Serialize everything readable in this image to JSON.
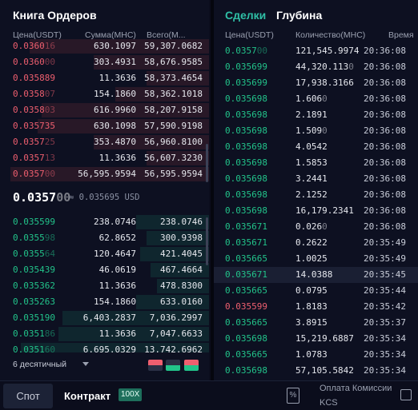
{
  "order_book": {
    "title": "Книга Ордеров",
    "columns": {
      "price": "Цена(USDT)",
      "amount": "Сумма(МНС)",
      "total": "Всего(М..."
    },
    "asks": [
      {
        "price_main": "0.0360",
        "price_dim": "16",
        "amount": "630.1097",
        "total": "59,307.0682",
        "depth": 0.86
      },
      {
        "price_main": "0.0360",
        "price_dim": "00",
        "amount": "303.4931",
        "total": "58,676.9585",
        "depth": 0.55
      },
      {
        "price_main": "0.035889",
        "price_dim": "",
        "amount": "11.3636",
        "total": "58,373.4654",
        "depth": 0.3
      },
      {
        "price_main": "0.0358",
        "price_dim": "07",
        "amount": "154.1860",
        "total": "58,362.1018",
        "depth": 0.45
      },
      {
        "price_main": "0.0358",
        "price_dim": "03",
        "amount": "616.9960",
        "total": "58,207.9158",
        "depth": 0.8
      },
      {
        "price_main": "0.035735",
        "price_dim": "",
        "amount": "630.1098",
        "total": "57,590.9198",
        "depth": 0.82
      },
      {
        "price_main": "0.0357",
        "price_dim": "25",
        "amount": "353.4870",
        "total": "56,960.8100",
        "depth": 0.55
      },
      {
        "price_main": "0.0357",
        "price_dim": "13",
        "amount": "11.3636",
        "total": "56,607.3230",
        "depth": 0.3
      },
      {
        "price_main": "0.0357",
        "price_dim": "00",
        "amount": "56,595.9594",
        "total": "56,595.9594",
        "depth": 0.95
      }
    ],
    "mid": {
      "price_main": "0.0357",
      "price_dim": "00",
      "sub": "≈ 0.035695 USD"
    },
    "bids": [
      {
        "price_main": "0.035599",
        "price_dim": "",
        "amount": "238.0746",
        "total": "238.0746",
        "depth": 0.35
      },
      {
        "price_main": "0.0355",
        "price_dim": "98",
        "amount": "62.8652",
        "total": "300.9398",
        "depth": 0.3
      },
      {
        "price_main": "0.0355",
        "price_dim": "64",
        "amount": "120.4647",
        "total": "421.4045",
        "depth": 0.33
      },
      {
        "price_main": "0.035439",
        "price_dim": "",
        "amount": "46.0619",
        "total": "467.4664",
        "depth": 0.28
      },
      {
        "price_main": "0.035362",
        "price_dim": "",
        "amount": "11.3636",
        "total": "478.8300",
        "depth": 0.25
      },
      {
        "price_main": "0.035263",
        "price_dim": "",
        "amount": "154.1860",
        "total": "633.0160",
        "depth": 0.35
      },
      {
        "price_main": "0.035190",
        "price_dim": "",
        "amount": "6,403.2837",
        "total": "7,036.2997",
        "depth": 0.7
      },
      {
        "price_main": "0.0351",
        "price_dim": "86",
        "amount": "11.3636",
        "total": "7,047.6633",
        "depth": 0.72
      },
      {
        "price_main": "0.0351",
        "price_dim": "60",
        "amount": "6,695.0329",
        "total": "13,742.6962",
        "depth": 0.9
      }
    ],
    "decimals_label": "6 десятичный",
    "colors": {
      "ask": "#ef5f6f",
      "bid": "#22c38a"
    }
  },
  "trades": {
    "tab_trades": "Сделки",
    "tab_depth": "Глубина",
    "columns": {
      "price": "Цена(USDT)",
      "qty": "Количество(МНС)",
      "time": "Время"
    },
    "rows": [
      {
        "side": "buy",
        "price_main": "0.0357",
        "price_dim": "00",
        "qty_main": "121,545.9974",
        "qty_dim": "",
        "time": "20:36:08"
      },
      {
        "side": "buy",
        "price_main": "0.035699",
        "price_dim": "",
        "qty_main": "44,320.113",
        "qty_dim": "0",
        "time": "20:36:08"
      },
      {
        "side": "buy",
        "price_main": "0.035699",
        "price_dim": "",
        "qty_main": "17,938.3166",
        "qty_dim": "",
        "time": "20:36:08"
      },
      {
        "side": "buy",
        "price_main": "0.035698",
        "price_dim": "",
        "qty_main": "1.606",
        "qty_dim": "0",
        "time": "20:36:08"
      },
      {
        "side": "buy",
        "price_main": "0.035698",
        "price_dim": "",
        "qty_main": "2.1891",
        "qty_dim": "",
        "time": "20:36:08"
      },
      {
        "side": "buy",
        "price_main": "0.035698",
        "price_dim": "",
        "qty_main": "1.509",
        "qty_dim": "0",
        "time": "20:36:08"
      },
      {
        "side": "buy",
        "price_main": "0.035698",
        "price_dim": "",
        "qty_main": "4.0542",
        "qty_dim": "",
        "time": "20:36:08"
      },
      {
        "side": "buy",
        "price_main": "0.035698",
        "price_dim": "",
        "qty_main": "1.5853",
        "qty_dim": "",
        "time": "20:36:08"
      },
      {
        "side": "buy",
        "price_main": "0.035698",
        "price_dim": "",
        "qty_main": "3.2441",
        "qty_dim": "",
        "time": "20:36:08"
      },
      {
        "side": "buy",
        "price_main": "0.035698",
        "price_dim": "",
        "qty_main": "2.1252",
        "qty_dim": "",
        "time": "20:36:08"
      },
      {
        "side": "buy",
        "price_main": "0.035698",
        "price_dim": "",
        "qty_main": "16,179.2341",
        "qty_dim": "",
        "time": "20:36:08"
      },
      {
        "side": "buy",
        "price_main": "0.035671",
        "price_dim": "",
        "qty_main": "0.026",
        "qty_dim": "0",
        "time": "20:36:08"
      },
      {
        "side": "buy",
        "price_main": "0.035671",
        "price_dim": "",
        "qty_main": "0.2622",
        "qty_dim": "",
        "time": "20:35:49"
      },
      {
        "side": "buy",
        "price_main": "0.035665",
        "price_dim": "",
        "qty_main": "1.0025",
        "qty_dim": "",
        "time": "20:35:49"
      },
      {
        "side": "buy",
        "price_main": "0.035671",
        "price_dim": "",
        "qty_main": "14.0388",
        "qty_dim": "",
        "time": "20:35:45",
        "highlight": true
      },
      {
        "side": "buy",
        "price_main": "0.035665",
        "price_dim": "",
        "qty_main": "0.0795",
        "qty_dim": "",
        "time": "20:35:44"
      },
      {
        "side": "sell",
        "price_main": "0.035599",
        "price_dim": "",
        "qty_main": "1.8183",
        "qty_dim": "",
        "time": "20:35:42"
      },
      {
        "side": "buy",
        "price_main": "0.035665",
        "price_dim": "",
        "qty_main": "3.8915",
        "qty_dim": "",
        "time": "20:35:37"
      },
      {
        "side": "buy",
        "price_main": "0.035698",
        "price_dim": "",
        "qty_main": "15,219.6887",
        "qty_dim": "",
        "time": "20:35:34"
      },
      {
        "side": "buy",
        "price_main": "0.035665",
        "price_dim": "",
        "qty_main": "1.0783",
        "qty_dim": "",
        "time": "20:35:34"
      },
      {
        "side": "buy",
        "price_main": "0.035698",
        "price_dim": "",
        "qty_main": "57,105.5842",
        "qty_dim": "",
        "time": "20:35:34"
      }
    ]
  },
  "bottom_bar": {
    "spot_label": "Спот",
    "contract_label": "Контракт",
    "contract_badge": "100X",
    "fee_icon_glyph": "%",
    "fee_label": "Оплата Комиссии KCS"
  }
}
